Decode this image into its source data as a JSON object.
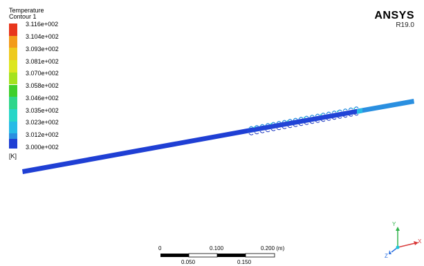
{
  "legend": {
    "title_line1": "Temperature",
    "title_line2": "Contour 1",
    "unit": "[K]",
    "entries": [
      {
        "label": "3.116e+002",
        "color": "#e8361c"
      },
      {
        "label": "3.104e+002",
        "color": "#f39b1a"
      },
      {
        "label": "3.093e+002",
        "color": "#eeca1e"
      },
      {
        "label": "3.081e+002",
        "color": "#dde620"
      },
      {
        "label": "3.070e+002",
        "color": "#a5e21e"
      },
      {
        "label": "3.058e+002",
        "color": "#3fcf2a"
      },
      {
        "label": "3.046e+002",
        "color": "#2fd68a"
      },
      {
        "label": "3.035e+002",
        "color": "#27d6c8"
      },
      {
        "label": "3.023e+002",
        "color": "#27bbe6"
      },
      {
        "label": "3.012e+002",
        "color": "#2a8fe0"
      },
      {
        "label": "3.000e+002",
        "color": "#1f3fd4"
      }
    ]
  },
  "brand": {
    "name": "ANSYS",
    "version": "R19.0"
  },
  "scale_bar": {
    "top_labels": [
      "0",
      "0.100",
      "0.200 (m)"
    ],
    "bottom_labels": [
      "0.050",
      "0.150"
    ]
  },
  "triad": {
    "y_label": "Y",
    "x_label": "X",
    "z_label": "Z"
  }
}
